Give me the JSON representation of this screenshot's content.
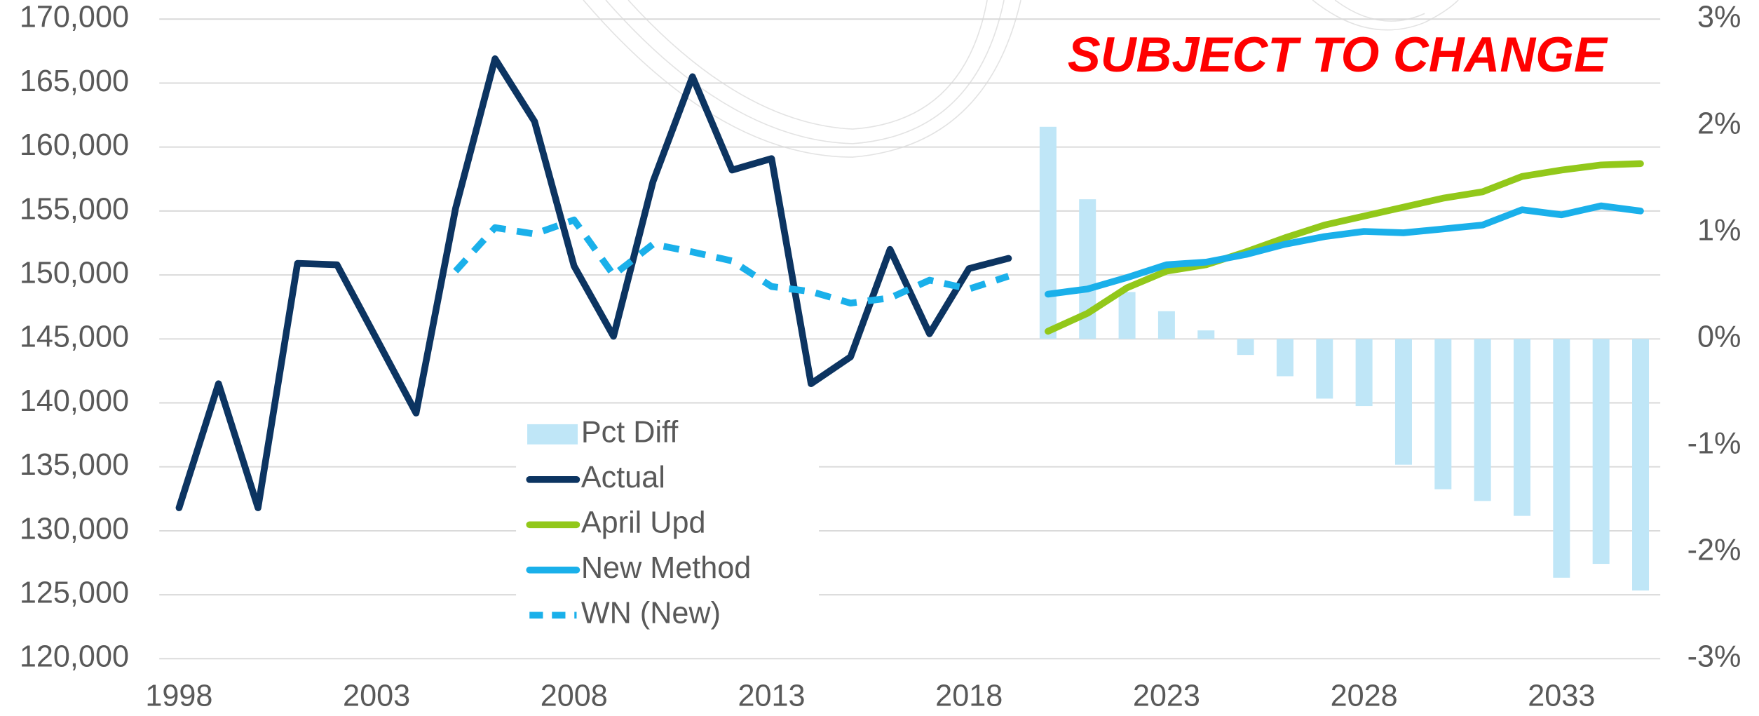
{
  "chart_data": {
    "type": "line",
    "title": "SUBJECT TO CHANGE",
    "title_color": "#ff0000",
    "x": [
      1998,
      1999,
      2000,
      2001,
      2002,
      2003,
      2004,
      2005,
      2006,
      2007,
      2008,
      2009,
      2010,
      2011,
      2012,
      2013,
      2014,
      2015,
      2016,
      2017,
      2018,
      2019,
      2020,
      2021,
      2022,
      2023,
      2024,
      2025,
      2026,
      2027,
      2028,
      2029,
      2030,
      2031,
      2032,
      2033,
      2034,
      2035
    ],
    "xlim": [
      1997.5,
      2035.5
    ],
    "xticks": [
      1998,
      2003,
      2008,
      2013,
      2018,
      2023,
      2028,
      2033
    ],
    "ylim": [
      120000,
      170000
    ],
    "yticks": [
      {
        "value": 120000,
        "label": "120,000"
      },
      {
        "value": 125000,
        "label": "125,000"
      },
      {
        "value": 130000,
        "label": "130,000"
      },
      {
        "value": 135000,
        "label": "135,000"
      },
      {
        "value": 140000,
        "label": "140,000"
      },
      {
        "value": 145000,
        "label": "145,000"
      },
      {
        "value": 150000,
        "label": "150,000"
      },
      {
        "value": 155000,
        "label": "155,000"
      },
      {
        "value": 160000,
        "label": "160,000"
      },
      {
        "value": 165000,
        "label": "165,000"
      },
      {
        "value": 170000,
        "label": "170,000"
      }
    ],
    "y2lim": [
      -3,
      3
    ],
    "y2ticks": [
      {
        "value": -3,
        "label": "-3%"
      },
      {
        "value": -2,
        "label": "-2%"
      },
      {
        "value": -1,
        "label": "-1%"
      },
      {
        "value": 0,
        "label": "0%"
      },
      {
        "value": 1,
        "label": "1%"
      },
      {
        "value": 2,
        "label": "2%"
      },
      {
        "value": 3,
        "label": "3%"
      }
    ],
    "grid": true,
    "series": [
      {
        "name": "Pct Diff",
        "type": "bar",
        "axis": "y2",
        "color": "#bfe6f7",
        "values": [
          null,
          null,
          null,
          null,
          null,
          null,
          null,
          null,
          null,
          null,
          null,
          null,
          null,
          null,
          null,
          null,
          null,
          null,
          null,
          null,
          null,
          null,
          1.99,
          1.31,
          0.44,
          0.26,
          0.08,
          -0.15,
          -0.35,
          -0.56,
          -0.63,
          -1.18,
          -1.41,
          -1.52,
          -1.66,
          -2.24,
          -2.11,
          -2.36
        ]
      },
      {
        "name": "Actual",
        "type": "line",
        "color": "#0c3461",
        "values": [
          131800,
          141500,
          131800,
          150900,
          150800,
          145000,
          139200,
          155200,
          166900,
          162000,
          150700,
          145200,
          157300,
          165500,
          158200,
          159100,
          141500,
          143600,
          152000,
          145400,
          150500,
          151300,
          null,
          null,
          null,
          null,
          null,
          null,
          null,
          null,
          null,
          null,
          null,
          null,
          null,
          null,
          null,
          null
        ]
      },
      {
        "name": "April Upd",
        "type": "line",
        "color": "#92c81a",
        "values": [
          null,
          null,
          null,
          null,
          null,
          null,
          null,
          null,
          null,
          null,
          null,
          null,
          null,
          null,
          null,
          null,
          null,
          null,
          null,
          null,
          null,
          null,
          145600,
          147000,
          149000,
          150300,
          150800,
          151800,
          152900,
          153900,
          154600,
          155300,
          156000,
          156500,
          157700,
          158200,
          158600,
          158700
        ]
      },
      {
        "name": "New Method",
        "type": "line",
        "color": "#1ab0ea",
        "values": [
          null,
          null,
          null,
          null,
          null,
          null,
          null,
          null,
          null,
          null,
          null,
          null,
          null,
          null,
          null,
          null,
          null,
          null,
          null,
          null,
          null,
          null,
          148500,
          148900,
          149800,
          150800,
          151000,
          151600,
          152400,
          153000,
          153400,
          153300,
          153600,
          153900,
          155100,
          154700,
          155400,
          155000
        ]
      },
      {
        "name": "WN (New)",
        "type": "line",
        "dashed": true,
        "color": "#1ab0ea",
        "values": [
          null,
          null,
          null,
          null,
          null,
          null,
          null,
          150300,
          153700,
          153200,
          154300,
          150000,
          152400,
          151800,
          151100,
          149100,
          148700,
          147800,
          148200,
          149600,
          148900,
          149900,
          null,
          null,
          null,
          null,
          null,
          null,
          null,
          null,
          null,
          null,
          null,
          null,
          null,
          null,
          null,
          null
        ]
      }
    ]
  }
}
